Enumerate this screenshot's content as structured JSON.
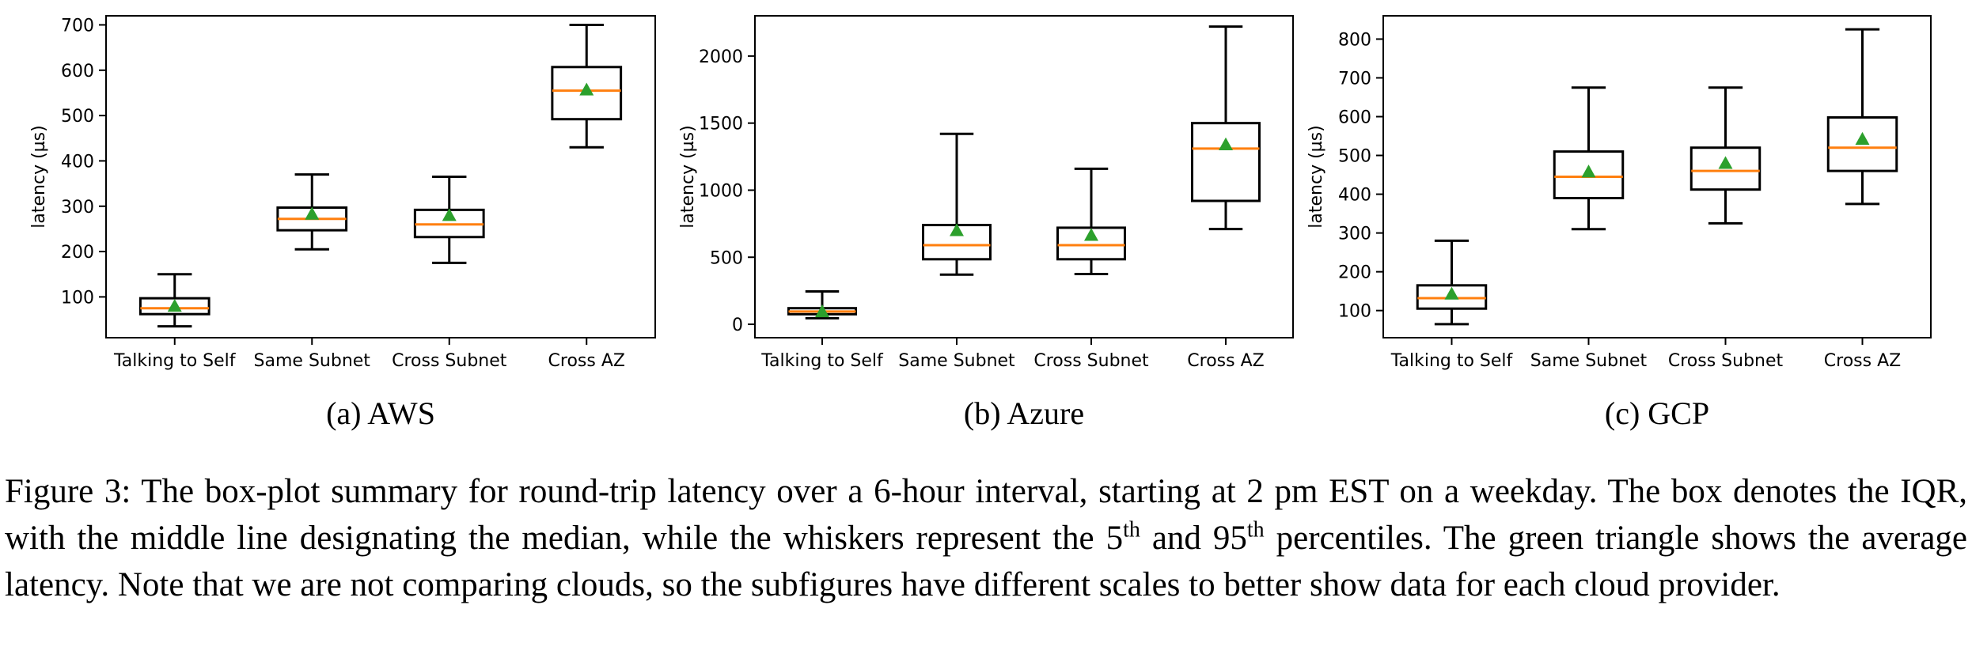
{
  "chart_data": [
    {
      "type": "box",
      "subcaption": "(a) AWS",
      "ylabel": "latency (µs)",
      "categories": [
        "Talking to Self",
        "Same Subnet",
        "Cross Subnet",
        "Cross AZ"
      ],
      "ylim": [
        10,
        720
      ],
      "yticks": [
        100,
        200,
        300,
        400,
        500,
        600,
        700
      ],
      "boxes": [
        {
          "whisker_low": 35,
          "q1": 62,
          "median": 75,
          "q3": 97,
          "whisker_high": 150,
          "mean": 80
        },
        {
          "whisker_low": 205,
          "q1": 247,
          "median": 272,
          "q3": 297,
          "whisker_high": 370,
          "mean": 283
        },
        {
          "whisker_low": 175,
          "q1": 232,
          "median": 260,
          "q3": 292,
          "whisker_high": 365,
          "mean": 280
        },
        {
          "whisker_low": 430,
          "q1": 492,
          "median": 555,
          "q3": 607,
          "whisker_high": 700,
          "mean": 557
        }
      ]
    },
    {
      "type": "box",
      "subcaption": "(b) Azure",
      "ylabel": "latency (µs)",
      "categories": [
        "Talking to Self",
        "Same Subnet",
        "Cross Subnet",
        "Cross AZ"
      ],
      "ylim": [
        -100,
        2300
      ],
      "yticks": [
        0,
        500,
        1000,
        1500,
        2000
      ],
      "boxes": [
        {
          "whisker_low": 45,
          "q1": 75,
          "median": 95,
          "q3": 120,
          "whisker_high": 245,
          "mean": 95
        },
        {
          "whisker_low": 370,
          "q1": 485,
          "median": 590,
          "q3": 740,
          "whisker_high": 1420,
          "mean": 700
        },
        {
          "whisker_low": 375,
          "q1": 485,
          "median": 590,
          "q3": 720,
          "whisker_high": 1160,
          "mean": 665
        },
        {
          "whisker_low": 710,
          "q1": 920,
          "median": 1310,
          "q3": 1500,
          "whisker_high": 2220,
          "mean": 1340
        }
      ]
    },
    {
      "type": "box",
      "subcaption": "(c) GCP",
      "ylabel": "latency (µs)",
      "categories": [
        "Talking to Self",
        "Same Subnet",
        "Cross Subnet",
        "Cross AZ"
      ],
      "ylim": [
        30,
        860
      ],
      "yticks": [
        100,
        200,
        300,
        400,
        500,
        600,
        700,
        800
      ],
      "boxes": [
        {
          "whisker_low": 65,
          "q1": 105,
          "median": 132,
          "q3": 165,
          "whisker_high": 280,
          "mean": 143
        },
        {
          "whisker_low": 310,
          "q1": 390,
          "median": 445,
          "q3": 510,
          "whisker_high": 675,
          "mean": 458
        },
        {
          "whisker_low": 325,
          "q1": 412,
          "median": 460,
          "q3": 520,
          "whisker_high": 675,
          "mean": 480
        },
        {
          "whisker_low": 375,
          "q1": 460,
          "median": 520,
          "q3": 598,
          "whisker_high": 825,
          "mean": 542
        }
      ]
    }
  ],
  "colors": {
    "median": "#ff7f0e",
    "mean": "#2ca02c",
    "box": "#000000"
  },
  "caption": {
    "part1": "Figure 3: The box-plot summary for round-trip latency over a 6-hour interval, starting at 2 pm EST on a weekday. The box denotes the IQR, with the middle line designating the median, while the whiskers represent the 5",
    "sup1": "th",
    "part2": " and 95",
    "sup2": "th",
    "part3": " percentiles. The green triangle shows the average latency. Note that we are not comparing clouds, so the subfigures have different scales to better show data for each cloud provider."
  }
}
